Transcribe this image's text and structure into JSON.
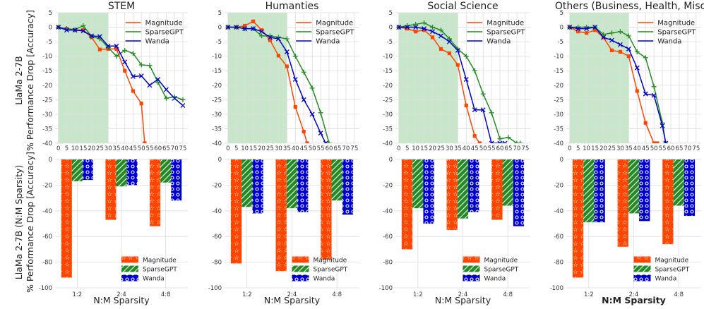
{
  "colors": {
    "magnitude": "#ff4500",
    "sparsegpt": "#228b22",
    "wanda": "#0000cd",
    "shade": "#c8e6c9",
    "grid": "#dddddd"
  },
  "ylabels": {
    "top": [
      "LlaMa 2-7B",
      "% Performance Drop [Accuracy]"
    ],
    "bottom": [
      "LlaMa 2-7B (N:M Sparsity)",
      "% Performance Drop [Accuracy]"
    ]
  },
  "xlabel_bottom": "N:M Sparsity",
  "chart_data": [
    {
      "type": "line",
      "title": "STEM",
      "x": [
        0,
        5,
        10,
        15,
        20,
        25,
        30,
        35,
        40,
        45,
        50,
        55,
        60,
        65,
        70,
        75
      ],
      "ylim": [
        -40,
        5
      ],
      "xlim": [
        -2,
        78
      ],
      "shaded_x": [
        0,
        30
      ],
      "series": [
        {
          "name": "Magnitude",
          "x": [
            0,
            5,
            10,
            15,
            20,
            25,
            30,
            35,
            40,
            45,
            50,
            52
          ],
          "values": [
            0,
            -0.5,
            -1,
            -1,
            -3.5,
            -7.7,
            -7.5,
            -7.5,
            -15,
            -22,
            -26.3,
            -40
          ],
          "marker": "square"
        },
        {
          "name": "SparseGPT",
          "x": [
            0,
            5,
            10,
            15,
            20,
            25,
            30,
            35,
            40,
            45,
            50,
            55,
            60,
            65,
            70,
            75
          ],
          "values": [
            0,
            -0.5,
            -0.8,
            0.5,
            -3.2,
            -4,
            -7,
            -10,
            -8,
            -9,
            -13,
            -13.2,
            -19,
            -24.5,
            -24,
            -25
          ],
          "marker": "plus"
        },
        {
          "name": "Wanda",
          "x": [
            0,
            5,
            10,
            15,
            20,
            25,
            30,
            35,
            40,
            45,
            50,
            55,
            60,
            65,
            70,
            75
          ],
          "values": [
            0,
            -1,
            -1,
            -1.3,
            -3,
            -3.2,
            -6.5,
            -6.5,
            -12,
            -17,
            -16.8,
            -20,
            -18,
            -21.5,
            -24.5,
            -27
          ],
          "marker": "x"
        }
      ]
    },
    {
      "type": "line",
      "title": "Humanties",
      "x": [
        0,
        5,
        10,
        15,
        20,
        25,
        30,
        35,
        40,
        45,
        50,
        55,
        60,
        65,
        70,
        75
      ],
      "ylim": [
        -40,
        5
      ],
      "xlim": [
        -2,
        78
      ],
      "shaded_x": [
        0,
        35
      ],
      "series": [
        {
          "name": "Magnitude",
          "x": [
            0,
            5,
            10,
            15,
            20,
            25,
            30,
            35,
            40,
            45,
            47
          ],
          "values": [
            0,
            0,
            0.5,
            2,
            -1,
            -4.5,
            -9.8,
            -13.5,
            -27.5,
            -36,
            -40
          ],
          "marker": "square"
        },
        {
          "name": "SparseGPT",
          "x": [
            0,
            5,
            10,
            15,
            20,
            25,
            30,
            35,
            40,
            45,
            50,
            55,
            60
          ],
          "values": [
            0,
            0,
            -0.5,
            -0.5,
            -3,
            -3,
            -3.5,
            -4,
            -10,
            -15.5,
            -21,
            -29.5,
            -40
          ],
          "marker": "plus"
        },
        {
          "name": "Wanda",
          "x": [
            0,
            5,
            10,
            15,
            20,
            25,
            30,
            35,
            40,
            45,
            50,
            55,
            58
          ],
          "values": [
            0,
            0,
            -0.5,
            -0.5,
            -1.5,
            -3.5,
            -4,
            -8.5,
            -18,
            -25,
            -30,
            -36.5,
            -40
          ],
          "marker": "x"
        }
      ]
    },
    {
      "type": "line",
      "title": "Social Science",
      "x": [
        0,
        5,
        10,
        15,
        20,
        25,
        30,
        35,
        40,
        45,
        50,
        55,
        60,
        65,
        70,
        75
      ],
      "ylim": [
        -40,
        5
      ],
      "xlim": [
        -2,
        78
      ],
      "shaded_x": [
        0,
        35
      ],
      "series": [
        {
          "name": "Magnitude",
          "x": [
            0,
            5,
            10,
            15,
            20,
            25,
            30,
            35,
            40,
            45,
            48
          ],
          "values": [
            0,
            -0.5,
            -1.5,
            -1,
            -3.5,
            -7.5,
            -9,
            -13,
            -27,
            -37.5,
            -40
          ],
          "marker": "square"
        },
        {
          "name": "SparseGPT",
          "x": [
            0,
            5,
            10,
            15,
            20,
            25,
            30,
            35,
            40,
            45,
            50,
            55,
            60,
            65,
            70,
            72
          ],
          "values": [
            0,
            0.5,
            1,
            1.5,
            0,
            -1,
            -4,
            -7.5,
            -10,
            -15,
            -23,
            -29.5,
            -38.5,
            -38,
            -40,
            -40
          ],
          "marker": "plus"
        },
        {
          "name": "Wanda",
          "x": [
            0,
            5,
            10,
            15,
            20,
            25,
            30,
            35,
            40,
            45,
            50,
            55,
            60,
            63
          ],
          "values": [
            0,
            0,
            0,
            -0.5,
            -1.5,
            -3,
            -5,
            -8,
            -18,
            -28.5,
            -28.5,
            -40,
            -40,
            -40
          ],
          "marker": "x"
        }
      ]
    },
    {
      "type": "line",
      "title": "Others (Business, Health, Misc.)",
      "x": [
        0,
        5,
        10,
        15,
        20,
        25,
        30,
        35,
        40,
        45,
        50,
        55,
        60,
        65,
        70,
        75
      ],
      "ylim": [
        -40,
        5
      ],
      "xlim": [
        -2,
        78
      ],
      "shaded_x": [
        0,
        35
      ],
      "series": [
        {
          "name": "Magnitude",
          "x": [
            0,
            5,
            10,
            15,
            20,
            25,
            30,
            35,
            40,
            45,
            50,
            52
          ],
          "values": [
            0,
            -1.5,
            -2,
            -1,
            -3.5,
            -8,
            -8.5,
            -10,
            -22,
            -33,
            -40,
            -40
          ],
          "marker": "square"
        },
        {
          "name": "SparseGPT",
          "x": [
            0,
            5,
            10,
            15,
            20,
            25,
            30,
            35,
            40,
            45,
            50,
            55,
            57
          ],
          "values": [
            0,
            0,
            0,
            0,
            -2.5,
            -2,
            -1.5,
            -3,
            -8.5,
            -10.5,
            -20.5,
            -33,
            -40
          ],
          "marker": "plus"
        },
        {
          "name": "Wanda",
          "x": [
            0,
            5,
            10,
            15,
            20,
            25,
            30,
            35,
            40,
            45,
            50,
            55,
            57
          ],
          "values": [
            0,
            -0.5,
            -0.5,
            0,
            -3.5,
            -4.5,
            -6,
            -7.5,
            -14,
            -23,
            -23.5,
            -34,
            -40
          ],
          "marker": "x"
        }
      ]
    },
    {
      "type": "bar",
      "categories": [
        "1:2",
        "2:4",
        "4:8"
      ],
      "ylim": [
        -100,
        0
      ],
      "series": [
        {
          "name": "Magnitude",
          "values": [
            -92,
            -47,
            -52
          ]
        },
        {
          "name": "SparseGPT",
          "values": [
            -17,
            -21,
            -18
          ]
        },
        {
          "name": "Wanda",
          "values": [
            -16,
            -20,
            -32
          ]
        }
      ]
    },
    {
      "type": "bar",
      "categories": [
        "1:2",
        "2:4",
        "4:8"
      ],
      "ylim": [
        -100,
        0
      ],
      "series": [
        {
          "name": "Magnitude",
          "values": [
            -81,
            -87,
            -78
          ]
        },
        {
          "name": "SparseGPT",
          "values": [
            -37,
            -38,
            -32
          ]
        },
        {
          "name": "Wanda",
          "values": [
            -42,
            -41,
            -43
          ]
        }
      ]
    },
    {
      "type": "bar",
      "categories": [
        "1:2",
        "2:4",
        "4:8"
      ],
      "ylim": [
        -100,
        0
      ],
      "series": [
        {
          "name": "Magnitude",
          "values": [
            -70,
            -55,
            -47
          ]
        },
        {
          "name": "SparseGPT",
          "values": [
            -38,
            -46,
            -36
          ]
        },
        {
          "name": "Wanda",
          "values": [
            -50,
            -41,
            -52
          ]
        }
      ]
    },
    {
      "type": "bar",
      "categories": [
        "1:2",
        "2:4",
        "4:8"
      ],
      "ylim": [
        -100,
        0
      ],
      "series": [
        {
          "name": "Magnitude",
          "values": [
            -92,
            -68,
            -66
          ]
        },
        {
          "name": "SparseGPT",
          "values": [
            -49,
            -42,
            -36
          ]
        },
        {
          "name": "Wanda",
          "values": [
            -49,
            -48,
            -44
          ]
        }
      ]
    }
  ]
}
